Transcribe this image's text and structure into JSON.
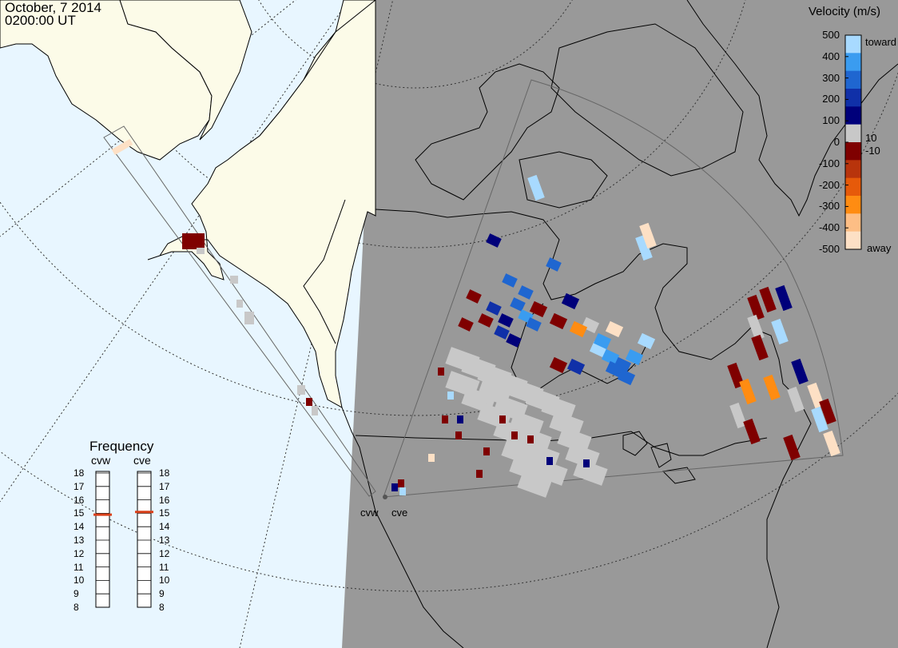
{
  "header": {
    "date": "October, 7 2014",
    "time": "0200:00 UT"
  },
  "colorbar": {
    "title": "Velocity (m/s)",
    "ticks": [
      "500",
      "400",
      "300",
      "200",
      "100",
      "0",
      "-100",
      "-200",
      "-300",
      "-400",
      "-500"
    ],
    "inner_high": "10",
    "inner_low": "-10",
    "top_label": "toward",
    "bottom_label": "away",
    "colors": [
      "#fde0c5",
      "#fdbe85",
      "#ff8c12",
      "#e65a0a",
      "#b8340c",
      "#7f0000",
      "#c8c8c8",
      "#00007a",
      "#1030a8",
      "#1f66d0",
      "#3a9cf0",
      "#a8daff"
    ]
  },
  "frequency": {
    "title": "Frequency",
    "radars": [
      "cvw",
      "cve"
    ],
    "ticks": [
      "18",
      "17",
      "16",
      "15",
      "14",
      "13",
      "12",
      "11",
      "10",
      "9",
      "8"
    ],
    "values_mhz": [
      14.9,
      15.1
    ],
    "marker_color": "#d9401a"
  },
  "radar_sites": [
    "cvw",
    "cve"
  ],
  "map": {
    "ocean_color": "#e8f6ff",
    "land_color": "#fcfbe8",
    "night_color": "#999999",
    "groundscatter_color": "#c8c8c8"
  }
}
